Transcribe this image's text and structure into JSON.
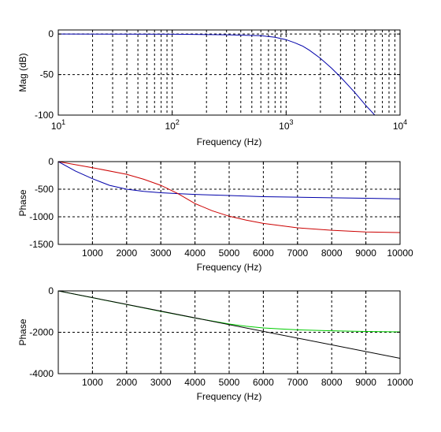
{
  "chart_data": [
    {
      "type": "line",
      "xscale": "log",
      "xlim": [
        10,
        10000
      ],
      "ylim": [
        -100,
        5
      ],
      "xticks": [
        10,
        100,
        1000,
        10000
      ],
      "xtick_labels": [
        {
          "base": "10",
          "exp": "1"
        },
        {
          "base": "10",
          "exp": "2"
        },
        {
          "base": "10",
          "exp": "3"
        },
        {
          "base": "10",
          "exp": "4"
        }
      ],
      "yticks": [
        0,
        -50,
        -100
      ],
      "ytick_labels": [
        "0",
        "-50",
        "-100"
      ],
      "xlabel": "Frequency (Hz)",
      "ylabel": "Mag (dB)",
      "grid": true,
      "series": [
        {
          "color": "#0000aa",
          "x": [
            10,
            100,
            300,
            600,
            800,
            1000,
            1200,
            1400,
            1600,
            2000,
            2500,
            3000,
            4000,
            5000,
            6000
          ],
          "y": [
            0,
            -0.2,
            -1,
            -2,
            -4,
            -7,
            -11,
            -15,
            -20,
            -30,
            -42,
            -53,
            -72,
            -88,
            -100
          ]
        }
      ]
    },
    {
      "type": "line",
      "xlim": [
        0,
        10000
      ],
      "ylim": [
        -1500,
        0
      ],
      "xticks": [
        1000,
        2000,
        3000,
        4000,
        5000,
        6000,
        7000,
        8000,
        9000,
        10000
      ],
      "xtick_labels": [
        "1000",
        "2000",
        "3000",
        "4000",
        "5000",
        "6000",
        "7000",
        "8000",
        "9000",
        "10000"
      ],
      "yticks": [
        0,
        -500,
        -1000,
        -1500
      ],
      "ytick_labels": [
        "0",
        "-500",
        "-1000",
        "-1500"
      ],
      "xlabel": "Frequency (Hz)",
      "ylabel": "Phase",
      "grid": true,
      "series": [
        {
          "color": "#0000aa",
          "x": [
            0,
            500,
            1000,
            1500,
            2000,
            2500,
            3000,
            3500,
            4000,
            5000,
            6000,
            7000,
            8000,
            9000,
            10000
          ],
          "y": [
            0,
            -170,
            -310,
            -430,
            -500,
            -540,
            -565,
            -580,
            -595,
            -615,
            -635,
            -645,
            -655,
            -665,
            -675
          ]
        },
        {
          "color": "#cc0000",
          "x": [
            0,
            1000,
            2000,
            2500,
            3000,
            3500,
            4000,
            4500,
            5000,
            5500,
            6000,
            7000,
            8000,
            9000,
            10000
          ],
          "y": [
            0,
            -110,
            -230,
            -320,
            -430,
            -580,
            -760,
            -890,
            -990,
            -1060,
            -1120,
            -1200,
            -1245,
            -1275,
            -1285
          ]
        }
      ]
    },
    {
      "type": "line",
      "xlim": [
        0,
        10000
      ],
      "ylim": [
        -4000,
        0
      ],
      "xticks": [
        1000,
        2000,
        3000,
        4000,
        5000,
        6000,
        7000,
        8000,
        9000,
        10000
      ],
      "xtick_labels": [
        "1000",
        "2000",
        "3000",
        "4000",
        "5000",
        "6000",
        "7000",
        "8000",
        "9000",
        "10000"
      ],
      "yticks": [
        0,
        -2000,
        -4000
      ],
      "ytick_labels": [
        "0",
        "-2000",
        "-4000"
      ],
      "xlabel": "Frequency (Hz)",
      "ylabel": "Phase",
      "grid": true,
      "series": [
        {
          "color": "#00cc00",
          "x": [
            0,
            1000,
            2000,
            3000,
            4000,
            5000,
            5500,
            6000,
            6500,
            7000,
            8000,
            9000,
            10000
          ],
          "y": [
            0,
            -330,
            -660,
            -990,
            -1310,
            -1600,
            -1710,
            -1790,
            -1840,
            -1880,
            -1930,
            -1960,
            -1980
          ]
        },
        {
          "color": "#000000",
          "x": [
            0,
            10000
          ],
          "y": [
            0,
            -3260
          ]
        }
      ]
    }
  ]
}
